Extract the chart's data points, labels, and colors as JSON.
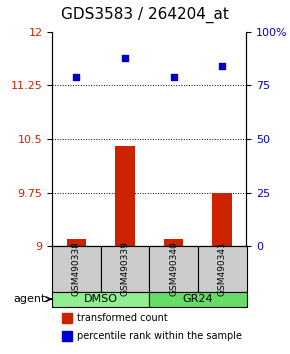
{
  "title": "GDS3583 / 264204_at",
  "samples": [
    "GSM490338",
    "GSM490339",
    "GSM490340",
    "GSM490341"
  ],
  "bar_values": [
    9.1,
    10.4,
    9.1,
    9.75
  ],
  "dot_values": [
    79,
    88,
    79,
    84
  ],
  "bar_color": "#cc2200",
  "dot_color": "#0000cc",
  "ylim_left": [
    9,
    12
  ],
  "ylim_right": [
    0,
    100
  ],
  "yticks_left": [
    9,
    9.75,
    10.5,
    11.25,
    12
  ],
  "yticks_right": [
    0,
    25,
    50,
    75,
    100
  ],
  "ytick_labels_right": [
    "0",
    "25",
    "50",
    "75",
    "100%"
  ],
  "gridlines": [
    9.75,
    10.5,
    11.25
  ],
  "bar_baseline": 9.0,
  "groups": [
    {
      "label": "DMSO",
      "samples": [
        0,
        1
      ],
      "color": "#90ee90"
    },
    {
      "label": "GR24",
      "samples": [
        2,
        3
      ],
      "color": "#66dd66"
    }
  ],
  "agent_label": "agent",
  "legend_bar_label": "transformed count",
  "legend_dot_label": "percentile rank within the sample",
  "sample_box_color": "#cccccc",
  "title_fontsize": 11,
  "tick_fontsize": 8,
  "label_fontsize": 8
}
